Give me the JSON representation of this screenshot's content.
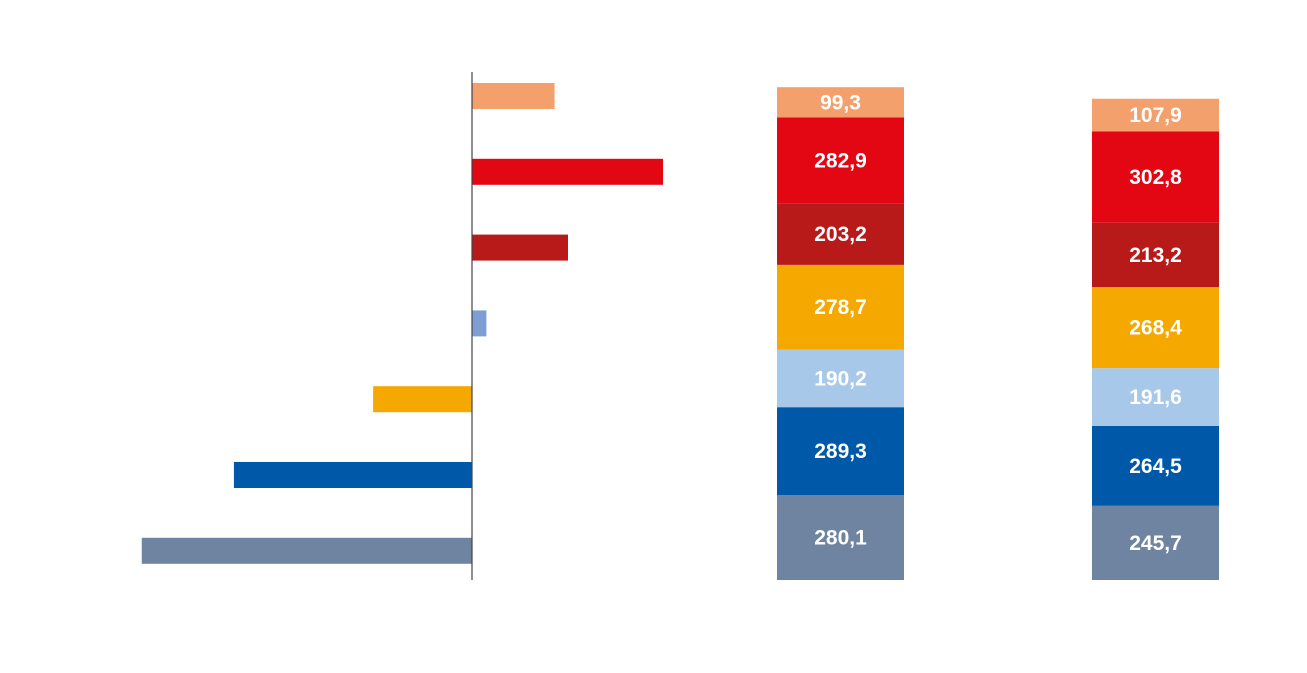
{
  "colors": {
    "peach": "#f4a06c",
    "red": "#e30613",
    "dark-red": "#b81a1a",
    "amber": "#f5a800",
    "light-blue": "#a8c8ea",
    "blue": "#0058a8",
    "slate": "#6f84a0",
    "periwinkle": "#7f9ed4",
    "axis": "#444444"
  },
  "chart_data": [
    {
      "type": "bar",
      "orientation": "horizontal",
      "title": "",
      "xlabel": "",
      "ylabel": "",
      "categories": [
        "",
        "",
        "",
        "",
        "",
        "",
        ""
      ],
      "values": [
        8.6,
        19.9,
        10.0,
        1.5,
        -10.3,
        -24.8,
        -34.4
      ],
      "bar_colors": [
        "#f4a06c",
        "#e30613",
        "#b81a1a",
        "#7f9ed4",
        "#f5a800",
        "#0058a8",
        "#6f84a0"
      ],
      "xlim": [
        -36,
        36
      ],
      "grid": false,
      "legend": "none"
    },
    {
      "type": "bar",
      "stacked": true,
      "title": "",
      "series": [
        {
          "label": "280,1",
          "value": 280.1,
          "color": "#6f84a0"
        },
        {
          "label": "289,3",
          "value": 289.3,
          "color": "#0058a8"
        },
        {
          "label": "190,2",
          "value": 190.2,
          "color": "#a8c8ea"
        },
        {
          "label": "278,7",
          "value": 278.7,
          "color": "#f5a800"
        },
        {
          "label": "203,2",
          "value": 203.2,
          "color": "#b81a1a"
        },
        {
          "label": "282,9",
          "value": 282.9,
          "color": "#e30613"
        },
        {
          "label": "99,3",
          "value": 99.3,
          "color": "#f4a06c"
        }
      ],
      "grid": false,
      "legend": "none"
    },
    {
      "type": "bar",
      "stacked": true,
      "title": "",
      "series": [
        {
          "label": "245,7",
          "value": 245.7,
          "color": "#6f84a0"
        },
        {
          "label": "264,5",
          "value": 264.5,
          "color": "#0058a8"
        },
        {
          "label": "191,6",
          "value": 191.6,
          "color": "#a8c8ea"
        },
        {
          "label": "268,4",
          "value": 268.4,
          "color": "#f5a800"
        },
        {
          "label": "213,2",
          "value": 213.2,
          "color": "#b81a1a"
        },
        {
          "label": "302,8",
          "value": 302.8,
          "color": "#e30613"
        },
        {
          "label": "107,9",
          "value": 107.9,
          "color": "#f4a06c"
        }
      ],
      "grid": false,
      "legend": "none"
    }
  ]
}
